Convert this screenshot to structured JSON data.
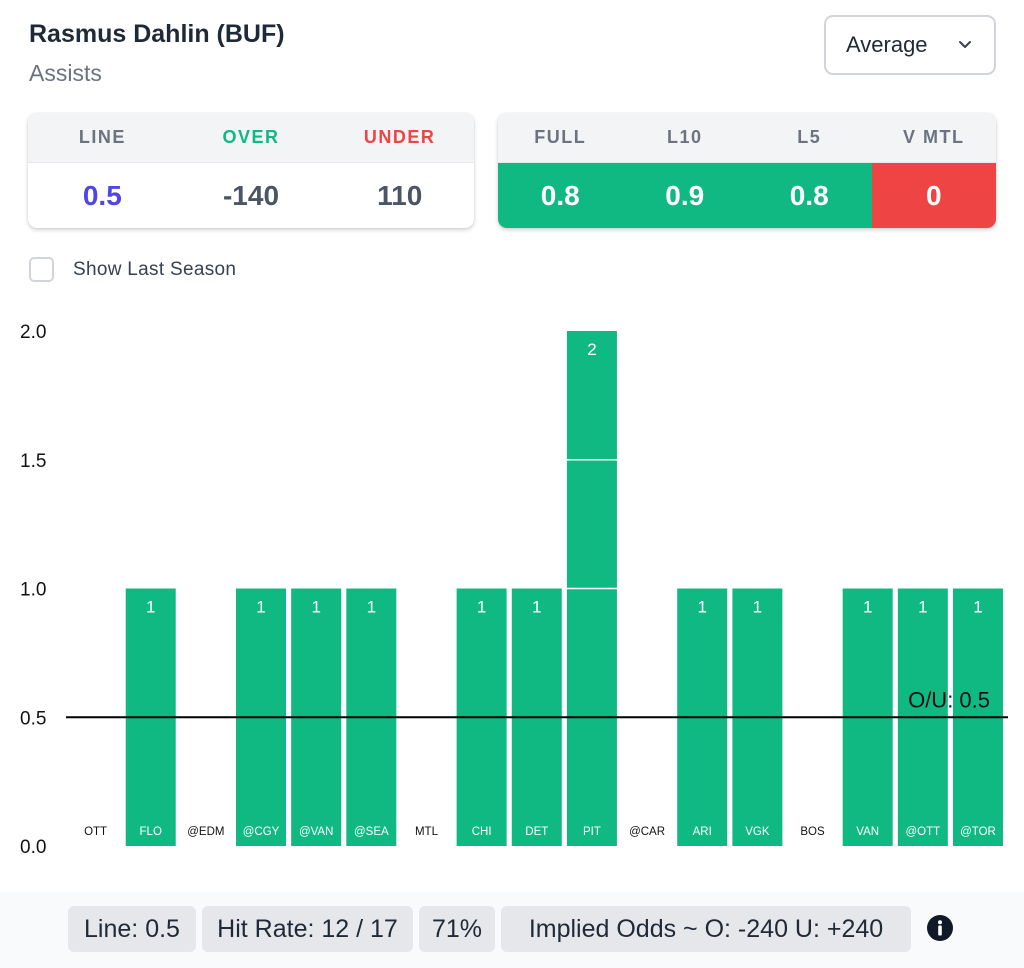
{
  "header": {
    "player": "Rasmus Dahlin (BUF)",
    "stat": "Assists"
  },
  "dropdown": {
    "selected": "Average"
  },
  "odds_card": {
    "labels": [
      "LINE",
      "OVER",
      "UNDER"
    ],
    "values": [
      "0.5",
      "-140",
      "110"
    ]
  },
  "avg_card": {
    "labels": [
      "FULL",
      "L10",
      "L5",
      "V MTL"
    ],
    "values": [
      "0.8",
      "0.9",
      "0.8",
      "0"
    ],
    "status": [
      "over",
      "over",
      "over",
      "under"
    ]
  },
  "show_last_season": {
    "label": "Show Last Season",
    "checked": false
  },
  "chart_data": {
    "type": "bar",
    "categories": [
      "OTT",
      "FLO",
      "@EDM",
      "@CGY",
      "@VAN",
      "@SEA",
      "MTL",
      "CHI",
      "DET",
      "PIT",
      "@CAR",
      "ARI",
      "VGK",
      "BOS",
      "VAN",
      "@OTT",
      "@TOR"
    ],
    "values": [
      0,
      1,
      0,
      1,
      1,
      1,
      0,
      1,
      1,
      2,
      0,
      1,
      1,
      0,
      1,
      1,
      1
    ],
    "yticks": [
      "0.0",
      "0.5",
      "1.0",
      "1.5",
      "2.0"
    ],
    "ylim": [
      0,
      2
    ],
    "line": {
      "value": 0.5,
      "label": "O/U: 0.5"
    },
    "colors": {
      "over": "#10b981",
      "under": "#ef4444",
      "line": "#000000"
    }
  },
  "footer": {
    "line": "Line: 0.5",
    "hit_rate": "Hit Rate: 12 / 17",
    "pct": "71%",
    "implied": "Implied Odds ~ O: -240 U: +240"
  },
  "icons": {
    "dropdown": "chevron-down-icon",
    "info": "info-icon"
  }
}
